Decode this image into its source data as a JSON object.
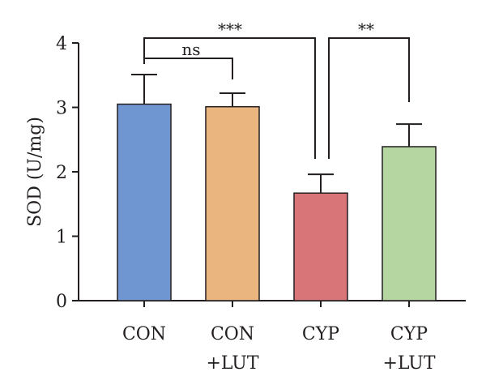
{
  "chart_data": {
    "type": "bar",
    "ylabel": "SOD (U/mg)",
    "ylim": [
      0,
      4
    ],
    "yticks": [
      0,
      1,
      2,
      3,
      4
    ],
    "categories": [
      {
        "line1": "CON",
        "line2": ""
      },
      {
        "line1": "CON",
        "line2": "+LUT"
      },
      {
        "line1": "CYP",
        "line2": ""
      },
      {
        "line1": "CYP",
        "line2": "+LUT"
      }
    ],
    "values": [
      3.05,
      3.01,
      1.67,
      2.39
    ],
    "errors": [
      0.46,
      0.21,
      0.29,
      0.35
    ],
    "colors": [
      "#6f96d1",
      "#eab57f",
      "#d87579",
      "#b5d6a1"
    ],
    "significance": [
      {
        "from": 0,
        "to": 1,
        "label": "ns"
      },
      {
        "from": 0,
        "to": 2,
        "label": "***"
      },
      {
        "from": 2,
        "to": 3,
        "label": "**"
      }
    ],
    "grid": false,
    "legend": "none"
  }
}
